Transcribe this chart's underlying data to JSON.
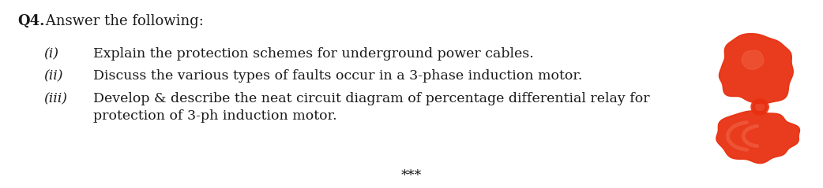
{
  "title_bold": "Q4.",
  "title_rest": " Answer the following:",
  "items": [
    {
      "label": "(i)",
      "text": "Explain the protection schemes for underground power cables."
    },
    {
      "label": "(ii)",
      "text": "Discuss the various types of faults occur in a 3-phase induction motor."
    },
    {
      "label": "(iii)",
      "text": "Develop & describe the neat circuit diagram of percentage differential relay for\nprotection of 3-ph induction motor."
    }
  ],
  "footer": "***",
  "bg_color": "#ffffff",
  "text_color": "#1a1a1a",
  "font_size": 12.5,
  "title_font_size": 13.0,
  "blob_color": "#e83010"
}
